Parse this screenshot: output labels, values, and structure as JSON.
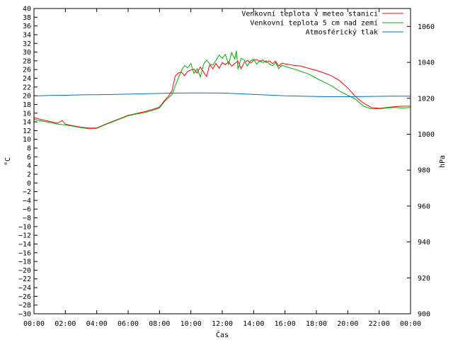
{
  "chart_data": {
    "type": "line",
    "title": "",
    "xlabel": "Čas",
    "ylabel": "°C",
    "y2label": "hPa",
    "xlim": [
      0,
      24
    ],
    "ylim": [
      -30,
      40
    ],
    "y2lim": [
      900,
      1070
    ],
    "x_ticks": [
      "00:00",
      "02:00",
      "04:00",
      "06:00",
      "08:00",
      "10:00",
      "12:00",
      "14:00",
      "16:00",
      "18:00",
      "20:00",
      "22:00",
      "00:00"
    ],
    "y_ticks": [
      40,
      38,
      36,
      34,
      32,
      30,
      28,
      26,
      24,
      22,
      20,
      18,
      16,
      14,
      12,
      10,
      8,
      6,
      4,
      2,
      0,
      -2,
      -4,
      -6,
      -8,
      -10,
      -12,
      -14,
      -16,
      -18,
      -20,
      -22,
      -24,
      -26,
      -28,
      -30
    ],
    "y2_ticks": [
      1060,
      1040,
      1020,
      1000,
      980,
      960,
      940,
      920,
      900
    ],
    "grid": false,
    "legend_position": "top-right",
    "series": [
      {
        "name": "Venkovní teplota v meteo stanici",
        "color": "#ff0000",
        "axis": "left",
        "x": [
          0,
          0.5,
          1,
          1.5,
          1.8,
          2,
          2.5,
          3,
          3.5,
          4,
          4.5,
          5,
          5.5,
          6,
          6.5,
          7,
          7.5,
          8,
          8.3,
          8.6,
          8.8,
          9,
          9.2,
          9.4,
          9.6,
          9.8,
          10,
          10.2,
          10.4,
          10.6,
          10.8,
          11,
          11.2,
          11.4,
          11.6,
          11.8,
          12,
          12.2,
          12.4,
          12.6,
          12.8,
          13,
          13.2,
          13.4,
          13.6,
          13.8,
          14,
          14.2,
          14.4,
          14.6,
          14.8,
          15,
          15.2,
          15.4,
          15.6,
          15.8,
          16,
          16.5,
          17,
          17.5,
          18,
          18.5,
          19,
          19.5,
          20,
          20.5,
          21,
          21.5,
          22,
          22.5,
          23,
          23.5,
          24
        ],
        "y": [
          15,
          14.5,
          14.1,
          13.7,
          14.3,
          13.5,
          13.1,
          12.8,
          12.6,
          12.6,
          13.4,
          14.1,
          14.8,
          15.5,
          15.9,
          16.3,
          16.8,
          17.4,
          18.8,
          20,
          21.2,
          24.5,
          25.2,
          25.4,
          24.6,
          25.6,
          25.9,
          26.1,
          25.2,
          26.6,
          25.5,
          24.4,
          27.1,
          26.2,
          27.4,
          26.3,
          27.6,
          27.1,
          27.8,
          26.8,
          27.4,
          27.9,
          26.2,
          27.6,
          28.1,
          27.5,
          28.1,
          28.3,
          27.8,
          28.2,
          27.6,
          28.0,
          27.4,
          27.9,
          26.8,
          27.5,
          27.3,
          27.0,
          26.8,
          26.3,
          25.8,
          25.2,
          24.5,
          23.4,
          21.8,
          19.8,
          18.3,
          17.3,
          17.1,
          17.3,
          17.5,
          17.6,
          17.6
        ]
      },
      {
        "name": "Venkovní teplota 5 cm nad zemí",
        "color": "#00b000",
        "axis": "left",
        "x": [
          0,
          0.5,
          1,
          1.5,
          2,
          2.5,
          3,
          3.5,
          4,
          4.5,
          5,
          5.5,
          6,
          6.5,
          7,
          7.5,
          8,
          8.3,
          8.6,
          8.8,
          9,
          9.2,
          9.4,
          9.6,
          9.8,
          10,
          10.2,
          10.4,
          10.6,
          10.8,
          11,
          11.2,
          11.4,
          11.6,
          11.8,
          12,
          12.2,
          12.4,
          12.6,
          12.8,
          12.9,
          13,
          13.2,
          13.4,
          13.6,
          13.8,
          14,
          14.2,
          14.4,
          14.6,
          14.8,
          15,
          15.2,
          15.4,
          15.6,
          15.8,
          16,
          16.5,
          17,
          17.5,
          18,
          18.5,
          19,
          19.5,
          20,
          20.5,
          21,
          21.5,
          22,
          22.5,
          23,
          23.5,
          24
        ],
        "y": [
          14.6,
          14.2,
          13.9,
          13.5,
          13.3,
          13,
          12.7,
          12.4,
          12.5,
          13.3,
          14,
          14.7,
          15.4,
          15.8,
          16.1,
          16.6,
          17.2,
          18.6,
          19.6,
          20.3,
          22.2,
          24,
          25.8,
          26.9,
          26.4,
          27.4,
          25.1,
          26.2,
          24.3,
          27.1,
          28.2,
          27.3,
          27.0,
          28.1,
          29.3,
          28.6,
          29.5,
          27.2,
          29.9,
          28.4,
          30.3,
          26.1,
          28.6,
          28.2,
          26.8,
          28.0,
          28.4,
          27.2,
          28.1,
          27.6,
          28.0,
          27.3,
          26.9,
          27.6,
          26.2,
          27.0,
          26.7,
          26.2,
          25.6,
          25.0,
          24.0,
          23.1,
          22.2,
          21.0,
          20.1,
          19.2,
          17.6,
          17.0,
          17.0,
          17.2,
          17.3,
          17.2,
          17.3
        ]
      },
      {
        "name": "Atmosférický tlak",
        "color": "#0070c0",
        "axis": "right",
        "x": [
          0,
          1,
          2,
          3,
          4,
          5,
          6,
          7,
          8,
          9,
          10,
          11,
          12,
          13,
          14,
          15,
          16,
          17,
          18,
          19,
          20,
          21,
          22,
          23,
          24
        ],
        "y": [
          1021.3,
          1021.6,
          1021.7,
          1021.9,
          1022.0,
          1022.1,
          1022.3,
          1022.5,
          1022.7,
          1022.9,
          1023.0,
          1023.0,
          1022.9,
          1022.6,
          1022.2,
          1021.8,
          1021.4,
          1021.2,
          1021.0,
          1020.9,
          1020.9,
          1021.0,
          1021.1,
          1021.2,
          1021.2
        ]
      }
    ]
  }
}
